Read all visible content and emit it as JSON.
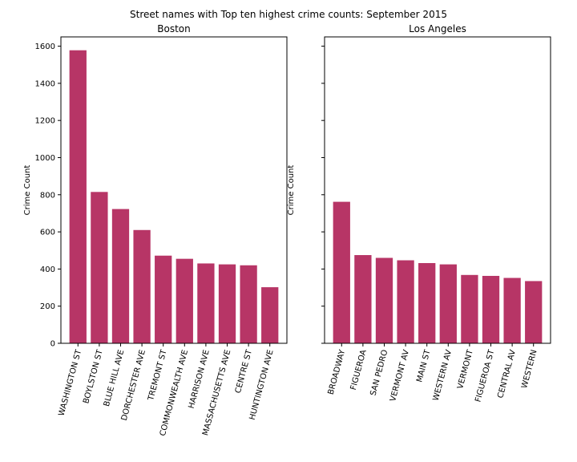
{
  "figure": {
    "suptitle": "Street names with Top ten highest crime counts: September 2015",
    "bar_color": "#b73566"
  },
  "chart_data": [
    {
      "type": "bar",
      "title": "Boston",
      "xlabel": "",
      "ylabel": "Crime Count",
      "ylim": [
        0,
        1650
      ],
      "yticks": [
        0,
        200,
        400,
        600,
        800,
        1000,
        1200,
        1400,
        1600
      ],
      "categories": [
        "WASHINGTON ST",
        "BOYLSTON ST",
        "BLUE HILL AVE",
        "DORCHESTER AVE",
        "TREMONT ST",
        "COMMONWEALTH AVE",
        "HARRISON AVE",
        "MASSACHUSETTS AVE",
        "CENTRE ST",
        "HUNTINGTON AVE"
      ],
      "values": [
        1578,
        815,
        723,
        610,
        472,
        455,
        430,
        425,
        420,
        302
      ],
      "grid": false,
      "x_tick_rotation": 75
    },
    {
      "type": "bar",
      "title": "Los Angeles",
      "xlabel": "",
      "ylabel": "Crime Count",
      "ylim": [
        0,
        1650
      ],
      "yticks": [
        0,
        200,
        400,
        600,
        800,
        1000,
        1200,
        1400,
        1600
      ],
      "y_tick_labels_shown": false,
      "categories": [
        "BROADWAY",
        "FIGUEROA",
        "SAN PEDRO",
        "VERMONT AV",
        "MAIN ST",
        "WESTERN AV",
        "VERMONT",
        "FIGUEROA ST",
        "CENTRAL AV",
        "WESTERN"
      ],
      "values": [
        762,
        475,
        460,
        447,
        432,
        425,
        368,
        363,
        352,
        335
      ],
      "grid": false,
      "x_tick_rotation": 75
    }
  ]
}
